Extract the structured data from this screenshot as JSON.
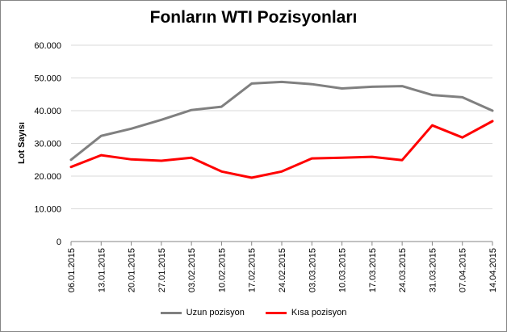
{
  "chart_data": {
    "type": "line",
    "title": "Fonların WTI Pozisyonları",
    "xlabel": "",
    "ylabel": "Lot Sayısı",
    "categories": [
      "06.01.2015",
      "13.01.2015",
      "20.01.2015",
      "27.01.2015",
      "03.02.2015",
      "10.02.2015",
      "17.02.2015",
      "24.02.2015",
      "03.03.2015",
      "10.03.2015",
      "17.03.2015",
      "24.03.2015",
      "31.03.2015",
      "07.04.2015",
      "14.04.2015"
    ],
    "ylim": [
      0,
      60000
    ],
    "yticks": [
      0,
      10000,
      20000,
      30000,
      40000,
      50000,
      60000
    ],
    "ytick_labels": [
      "0",
      "10.000",
      "20.000",
      "30.000",
      "40.000",
      "50.000",
      "60.000"
    ],
    "grid": true,
    "legend_position": "bottom",
    "series": [
      {
        "name": "Uzun pozisyon",
        "color": "#808080",
        "values": [
          25000,
          32300,
          34500,
          37200,
          40200,
          41200,
          48300,
          48800,
          48100,
          46800,
          47300,
          47500,
          44800,
          44100,
          40000
        ]
      },
      {
        "name": "Kısa pozisyon",
        "color": "#ff0000",
        "values": [
          22800,
          26400,
          25100,
          24700,
          25600,
          21400,
          19500,
          21400,
          25400,
          25600,
          25900,
          24900,
          35500,
          31800,
          36800
        ]
      }
    ]
  }
}
